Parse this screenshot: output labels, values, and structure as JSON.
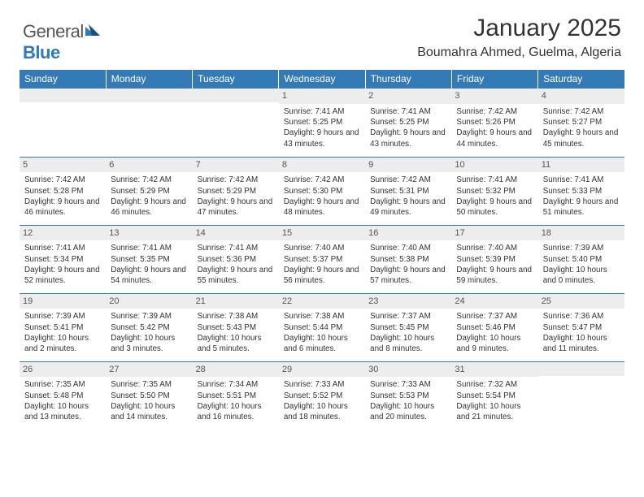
{
  "logo": {
    "word1": "General",
    "word2": "Blue"
  },
  "title": "January 2025",
  "subtitle": "Boumahra Ahmed, Guelma, Algeria",
  "colors": {
    "header_bg": "#337ab7",
    "header_text": "#ffffff",
    "daynum_bg": "#ededed",
    "daynum_text": "#555555",
    "border": "#337ab7",
    "body_text": "#333333",
    "logo_gray": "#555555",
    "logo_blue": "#2f79bd",
    "page_bg": "#ffffff"
  },
  "typography": {
    "title_fontsize": 30,
    "subtitle_fontsize": 16,
    "header_fontsize": 12,
    "daynum_fontsize": 11,
    "cell_fontsize": 9.8,
    "logo_fontsize": 22
  },
  "weekdays": [
    "Sunday",
    "Monday",
    "Tuesday",
    "Wednesday",
    "Thursday",
    "Friday",
    "Saturday"
  ],
  "weeks": [
    [
      {
        "day": "",
        "sunrise": "",
        "sunset": "",
        "daylight": ""
      },
      {
        "day": "",
        "sunrise": "",
        "sunset": "",
        "daylight": ""
      },
      {
        "day": "",
        "sunrise": "",
        "sunset": "",
        "daylight": ""
      },
      {
        "day": "1",
        "sunrise": "Sunrise: 7:41 AM",
        "sunset": "Sunset: 5:25 PM",
        "daylight": "Daylight: 9 hours and 43 minutes."
      },
      {
        "day": "2",
        "sunrise": "Sunrise: 7:41 AM",
        "sunset": "Sunset: 5:25 PM",
        "daylight": "Daylight: 9 hours and 43 minutes."
      },
      {
        "day": "3",
        "sunrise": "Sunrise: 7:42 AM",
        "sunset": "Sunset: 5:26 PM",
        "daylight": "Daylight: 9 hours and 44 minutes."
      },
      {
        "day": "4",
        "sunrise": "Sunrise: 7:42 AM",
        "sunset": "Sunset: 5:27 PM",
        "daylight": "Daylight: 9 hours and 45 minutes."
      }
    ],
    [
      {
        "day": "5",
        "sunrise": "Sunrise: 7:42 AM",
        "sunset": "Sunset: 5:28 PM",
        "daylight": "Daylight: 9 hours and 46 minutes."
      },
      {
        "day": "6",
        "sunrise": "Sunrise: 7:42 AM",
        "sunset": "Sunset: 5:29 PM",
        "daylight": "Daylight: 9 hours and 46 minutes."
      },
      {
        "day": "7",
        "sunrise": "Sunrise: 7:42 AM",
        "sunset": "Sunset: 5:29 PM",
        "daylight": "Daylight: 9 hours and 47 minutes."
      },
      {
        "day": "8",
        "sunrise": "Sunrise: 7:42 AM",
        "sunset": "Sunset: 5:30 PM",
        "daylight": "Daylight: 9 hours and 48 minutes."
      },
      {
        "day": "9",
        "sunrise": "Sunrise: 7:42 AM",
        "sunset": "Sunset: 5:31 PM",
        "daylight": "Daylight: 9 hours and 49 minutes."
      },
      {
        "day": "10",
        "sunrise": "Sunrise: 7:41 AM",
        "sunset": "Sunset: 5:32 PM",
        "daylight": "Daylight: 9 hours and 50 minutes."
      },
      {
        "day": "11",
        "sunrise": "Sunrise: 7:41 AM",
        "sunset": "Sunset: 5:33 PM",
        "daylight": "Daylight: 9 hours and 51 minutes."
      }
    ],
    [
      {
        "day": "12",
        "sunrise": "Sunrise: 7:41 AM",
        "sunset": "Sunset: 5:34 PM",
        "daylight": "Daylight: 9 hours and 52 minutes."
      },
      {
        "day": "13",
        "sunrise": "Sunrise: 7:41 AM",
        "sunset": "Sunset: 5:35 PM",
        "daylight": "Daylight: 9 hours and 54 minutes."
      },
      {
        "day": "14",
        "sunrise": "Sunrise: 7:41 AM",
        "sunset": "Sunset: 5:36 PM",
        "daylight": "Daylight: 9 hours and 55 minutes."
      },
      {
        "day": "15",
        "sunrise": "Sunrise: 7:40 AM",
        "sunset": "Sunset: 5:37 PM",
        "daylight": "Daylight: 9 hours and 56 minutes."
      },
      {
        "day": "16",
        "sunrise": "Sunrise: 7:40 AM",
        "sunset": "Sunset: 5:38 PM",
        "daylight": "Daylight: 9 hours and 57 minutes."
      },
      {
        "day": "17",
        "sunrise": "Sunrise: 7:40 AM",
        "sunset": "Sunset: 5:39 PM",
        "daylight": "Daylight: 9 hours and 59 minutes."
      },
      {
        "day": "18",
        "sunrise": "Sunrise: 7:39 AM",
        "sunset": "Sunset: 5:40 PM",
        "daylight": "Daylight: 10 hours and 0 minutes."
      }
    ],
    [
      {
        "day": "19",
        "sunrise": "Sunrise: 7:39 AM",
        "sunset": "Sunset: 5:41 PM",
        "daylight": "Daylight: 10 hours and 2 minutes."
      },
      {
        "day": "20",
        "sunrise": "Sunrise: 7:39 AM",
        "sunset": "Sunset: 5:42 PM",
        "daylight": "Daylight: 10 hours and 3 minutes."
      },
      {
        "day": "21",
        "sunrise": "Sunrise: 7:38 AM",
        "sunset": "Sunset: 5:43 PM",
        "daylight": "Daylight: 10 hours and 5 minutes."
      },
      {
        "day": "22",
        "sunrise": "Sunrise: 7:38 AM",
        "sunset": "Sunset: 5:44 PM",
        "daylight": "Daylight: 10 hours and 6 minutes."
      },
      {
        "day": "23",
        "sunrise": "Sunrise: 7:37 AM",
        "sunset": "Sunset: 5:45 PM",
        "daylight": "Daylight: 10 hours and 8 minutes."
      },
      {
        "day": "24",
        "sunrise": "Sunrise: 7:37 AM",
        "sunset": "Sunset: 5:46 PM",
        "daylight": "Daylight: 10 hours and 9 minutes."
      },
      {
        "day": "25",
        "sunrise": "Sunrise: 7:36 AM",
        "sunset": "Sunset: 5:47 PM",
        "daylight": "Daylight: 10 hours and 11 minutes."
      }
    ],
    [
      {
        "day": "26",
        "sunrise": "Sunrise: 7:35 AM",
        "sunset": "Sunset: 5:48 PM",
        "daylight": "Daylight: 10 hours and 13 minutes."
      },
      {
        "day": "27",
        "sunrise": "Sunrise: 7:35 AM",
        "sunset": "Sunset: 5:50 PM",
        "daylight": "Daylight: 10 hours and 14 minutes."
      },
      {
        "day": "28",
        "sunrise": "Sunrise: 7:34 AM",
        "sunset": "Sunset: 5:51 PM",
        "daylight": "Daylight: 10 hours and 16 minutes."
      },
      {
        "day": "29",
        "sunrise": "Sunrise: 7:33 AM",
        "sunset": "Sunset: 5:52 PM",
        "daylight": "Daylight: 10 hours and 18 minutes."
      },
      {
        "day": "30",
        "sunrise": "Sunrise: 7:33 AM",
        "sunset": "Sunset: 5:53 PM",
        "daylight": "Daylight: 10 hours and 20 minutes."
      },
      {
        "day": "31",
        "sunrise": "Sunrise: 7:32 AM",
        "sunset": "Sunset: 5:54 PM",
        "daylight": "Daylight: 10 hours and 21 minutes."
      },
      {
        "day": "",
        "sunrise": "",
        "sunset": "",
        "daylight": ""
      }
    ]
  ]
}
